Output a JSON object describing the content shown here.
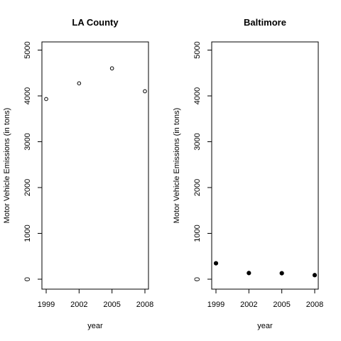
{
  "chart_data": [
    {
      "type": "scatter",
      "title": "LA County",
      "xlabel": "year",
      "ylabel": "Motor Vehicle Emissions (in tons)",
      "x": [
        1999,
        2002,
        2005,
        2008
      ],
      "y": [
        3931,
        4274,
        4601,
        4101
      ],
      "xlim": [
        1999,
        2008
      ],
      "ylim": [
        0,
        5200
      ],
      "xticks": [
        1999,
        2002,
        2005,
        2008
      ],
      "yticks": [
        0,
        1000,
        2000,
        3000,
        4000,
        5000
      ],
      "marker": "open-circle",
      "grid": false
    },
    {
      "type": "scatter",
      "title": "Baltimore",
      "xlabel": "year",
      "ylabel": "Motor Vehicle Emissions (in tons)",
      "x": [
        1999,
        2002,
        2005,
        2008
      ],
      "y": [
        347,
        134,
        130,
        89
      ],
      "xlim": [
        1999,
        2008
      ],
      "ylim": [
        0,
        5200
      ],
      "xticks": [
        1999,
        2002,
        2005,
        2008
      ],
      "yticks": [
        0,
        1000,
        2000,
        3000,
        4000,
        5000
      ],
      "marker": "filled-circle",
      "grid": false
    }
  ]
}
